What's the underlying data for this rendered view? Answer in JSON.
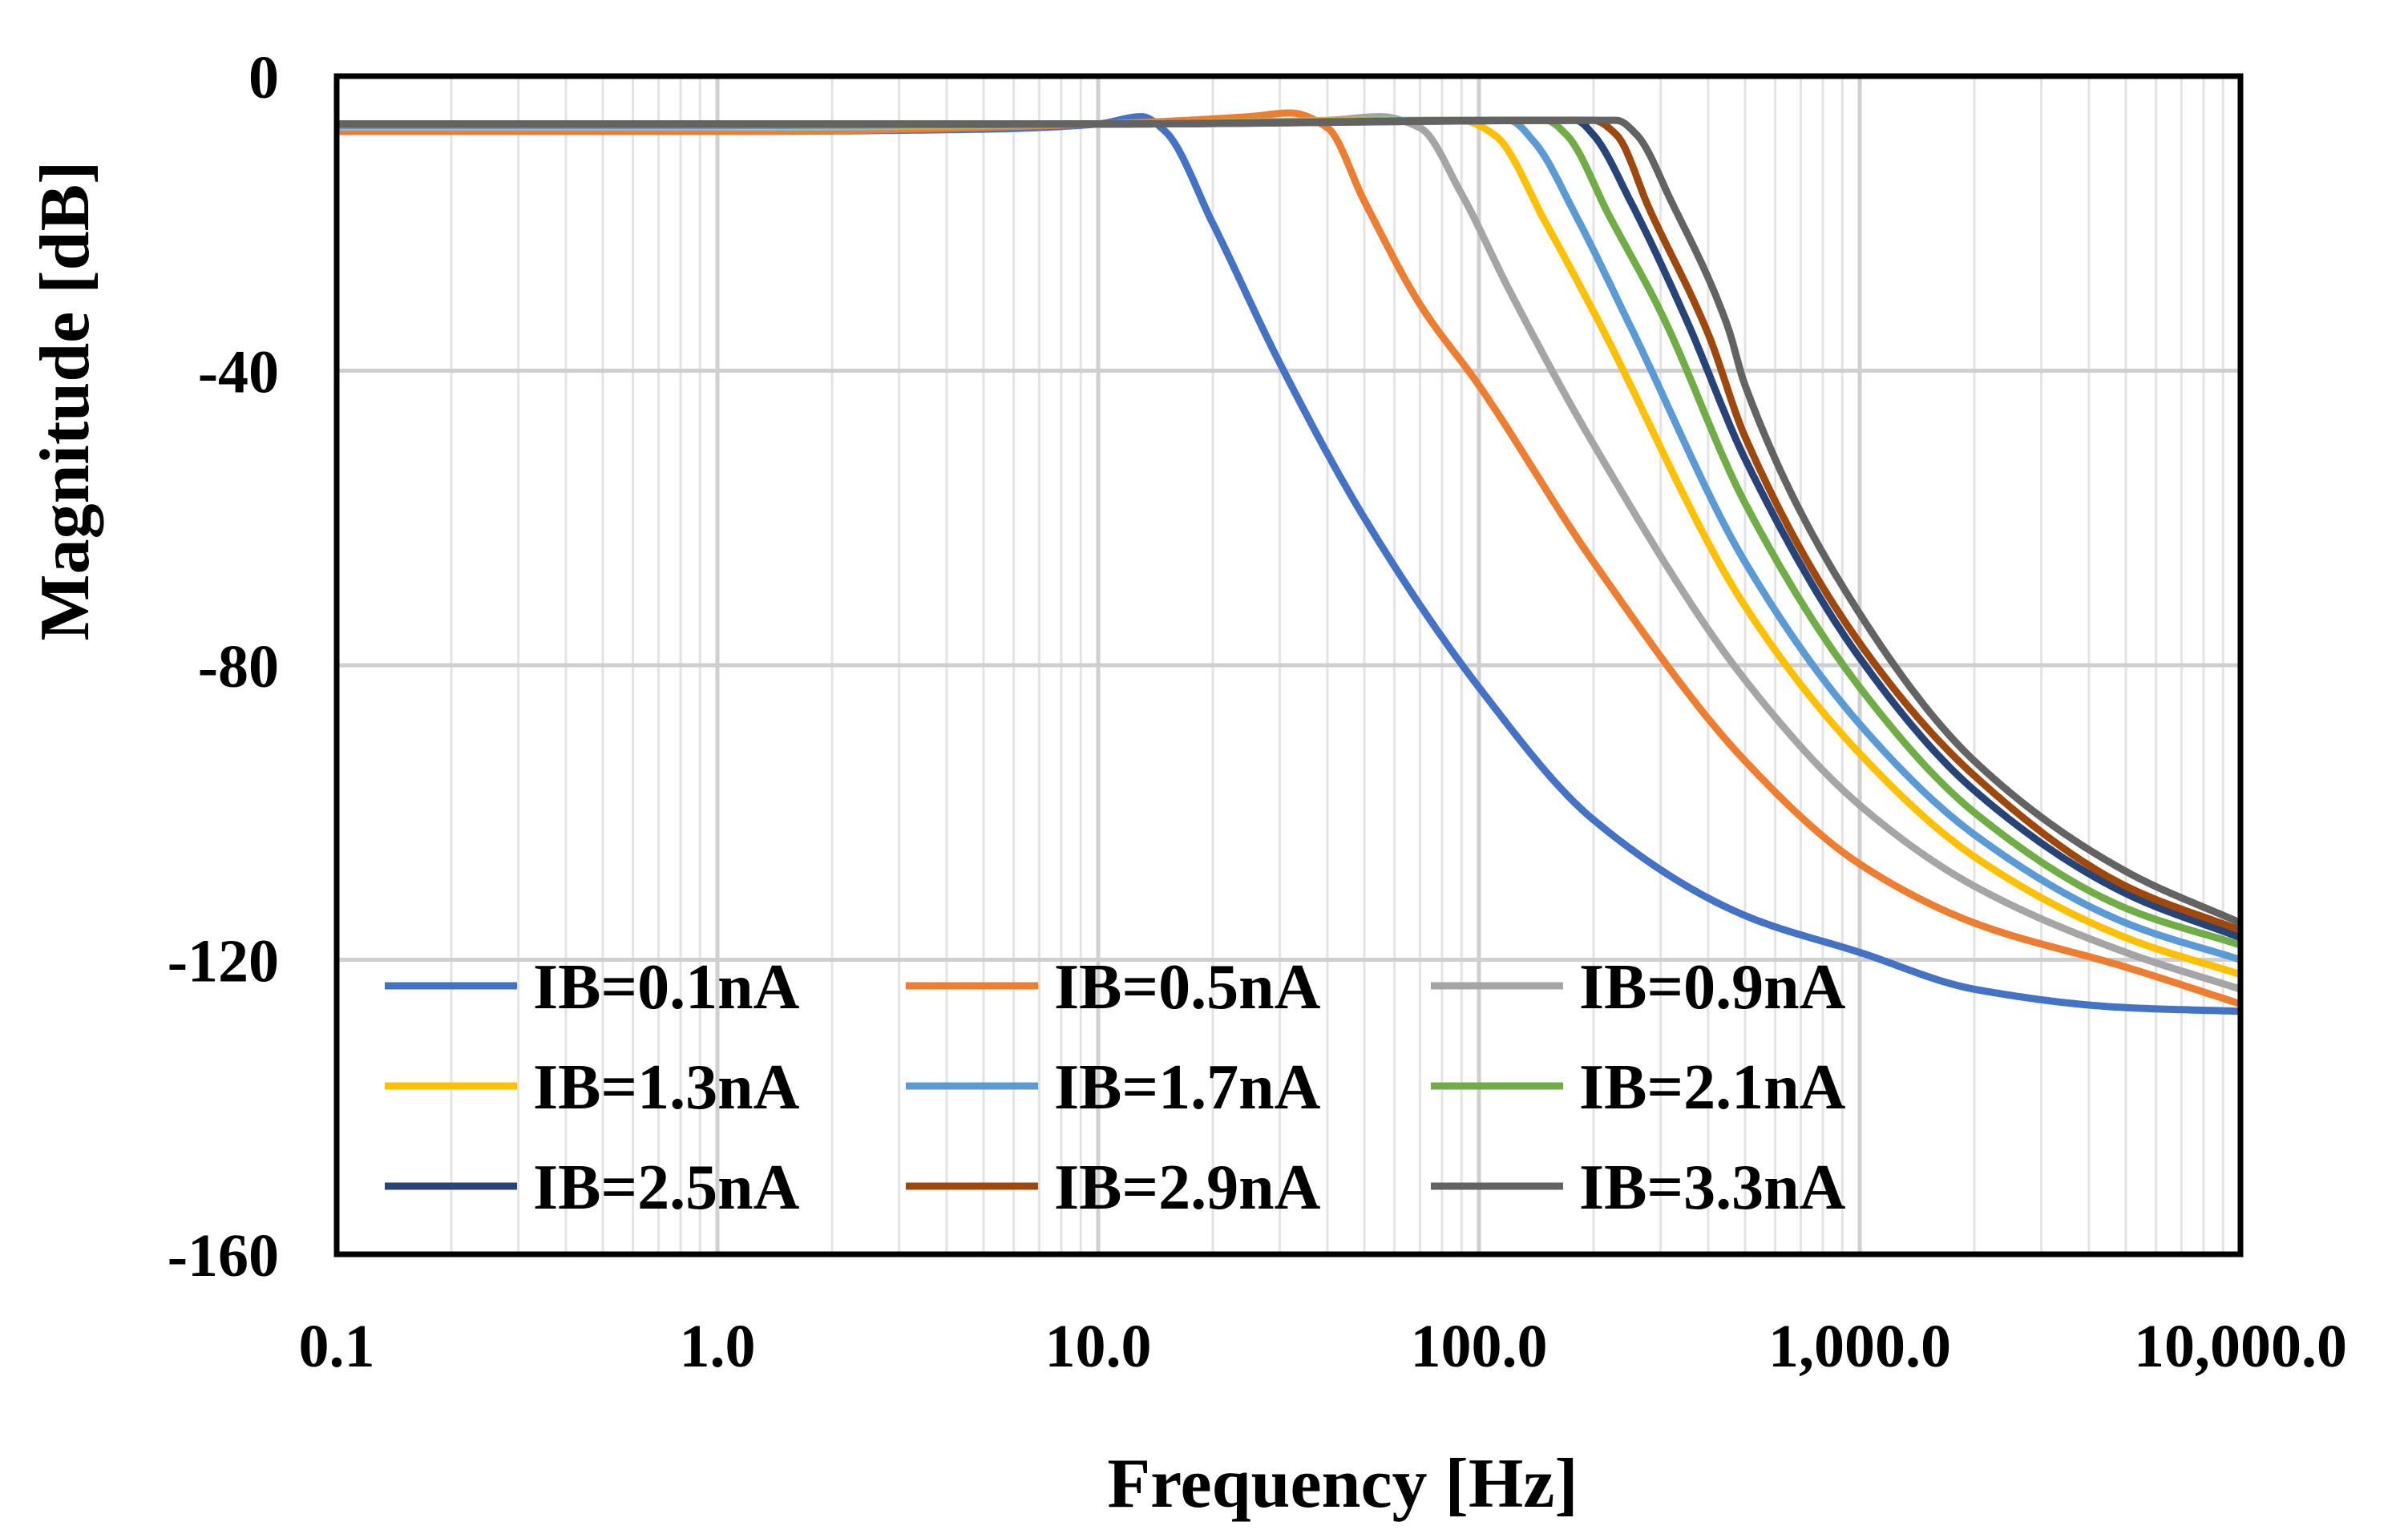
{
  "chart_data": {
    "type": "line",
    "title": "",
    "xlabel": "Frequency [Hz]",
    "ylabel": "Magnitude [dB]",
    "x_scale": "log",
    "xlim": [
      0.1,
      10000
    ],
    "ylim": [
      -160,
      0
    ],
    "x_ticks": [
      0.1,
      1,
      10,
      100,
      1000,
      10000
    ],
    "x_tick_labels": [
      "0.1",
      "1.0",
      "10.0",
      "100.0",
      "1,000.0",
      "10,000.0"
    ],
    "y_ticks": [
      0,
      -40,
      -80,
      -120,
      -160
    ],
    "y_tick_labels": [
      "0",
      "-40",
      "-80",
      "-120",
      "-160"
    ],
    "grid": "major and minor (log)",
    "legend": {
      "position": "bottom-left",
      "columns": 3
    },
    "series": [
      {
        "name": "IB=0.1nA",
        "color": "#4472C4",
        "x": [
          0.1,
          1,
          5,
          10,
          13,
          15,
          20,
          30,
          50,
          100,
          200,
          500,
          1000,
          2000,
          5000,
          10000
        ],
        "y": [
          -7.5,
          -7.5,
          -7.2,
          -6.5,
          -5.5,
          -7.5,
          -20,
          -39,
          -60,
          -83,
          -101,
          -114,
          -119,
          -124,
          -126.5,
          -127
        ]
      },
      {
        "name": "IB=0.5nA",
        "color": "#ED7D31",
        "x": [
          0.1,
          1,
          10,
          25,
          32,
          40,
          50,
          70,
          100,
          200,
          500,
          1000,
          2000,
          5000,
          10000
        ],
        "y": [
          -7.5,
          -7.5,
          -6.5,
          -5.5,
          -5,
          -7,
          -17,
          -31,
          -42,
          -66,
          -93,
          -107,
          -115,
          -121,
          -126
        ]
      },
      {
        "name": "IB=0.9nA",
        "color": "#A5A5A5",
        "x": [
          0.1,
          1,
          10,
          40,
          55,
          70,
          90,
          120,
          200,
          500,
          1000,
          2000,
          5000,
          10000
        ],
        "y": [
          -7,
          -7,
          -6.5,
          -6,
          -5.5,
          -7,
          -16,
          -29,
          -50,
          -82,
          -99,
          -110,
          -119,
          -124
        ]
      },
      {
        "name": "IB=1.3nA",
        "color": "#FFC000",
        "x": [
          0.1,
          1,
          10,
          70,
          90,
          110,
          150,
          200,
          500,
          1000,
          2000,
          5000,
          10000
        ],
        "y": [
          -6.8,
          -6.8,
          -6.5,
          -6,
          -6,
          -8,
          -20,
          -32,
          -72,
          -92,
          -106,
          -117,
          -122
        ]
      },
      {
        "name": "IB=1.7nA",
        "color": "#5B9BD5",
        "x": [
          0.1,
          1,
          10,
          100,
          120,
          140,
          180,
          250,
          500,
          1000,
          2000,
          5000,
          10000
        ],
        "y": [
          -6.7,
          -6.7,
          -6.5,
          -6,
          -6,
          -9,
          -19,
          -34,
          -66,
          -88,
          -103,
          -115,
          -120
        ]
      },
      {
        "name": "IB=2.1nA",
        "color": "#70AD47",
        "x": [
          0.1,
          1,
          10,
          120,
          150,
          170,
          220,
          300,
          500,
          1000,
          2000,
          5000,
          10000
        ],
        "y": [
          -6.6,
          -6.6,
          -6.5,
          -6,
          -6,
          -8,
          -19,
          -32,
          -58,
          -83,
          -100,
          -113,
          -118
        ]
      },
      {
        "name": "IB=2.5nA",
        "color": "#264478",
        "x": [
          0.1,
          1,
          10,
          150,
          180,
          200,
          250,
          350,
          500,
          1000,
          2000,
          5000,
          10000
        ],
        "y": [
          -6.5,
          -6.5,
          -6.5,
          -6,
          -6,
          -8,
          -17,
          -33,
          -52,
          -79,
          -97,
          -111,
          -117
        ]
      },
      {
        "name": "IB=2.9nA",
        "color": "#9E480E",
        "x": [
          0.1,
          1,
          10,
          180,
          200,
          230,
          280,
          400,
          500,
          1000,
          2000,
          5000,
          10000
        ],
        "y": [
          -6.5,
          -6.5,
          -6.5,
          -6,
          -6,
          -8,
          -18,
          -35,
          -49,
          -77,
          -95,
          -110,
          -116
        ]
      },
      {
        "name": "IB=3.3nA",
        "color": "#636363",
        "x": [
          0.1,
          1,
          10,
          200,
          230,
          260,
          320,
          450,
          500,
          1000,
          2000,
          5000,
          10000
        ],
        "y": [
          -6.5,
          -6.5,
          -6.5,
          -6,
          -6,
          -8,
          -17,
          -34,
          -42,
          -73,
          -93,
          -108,
          -115
        ]
      }
    ]
  }
}
